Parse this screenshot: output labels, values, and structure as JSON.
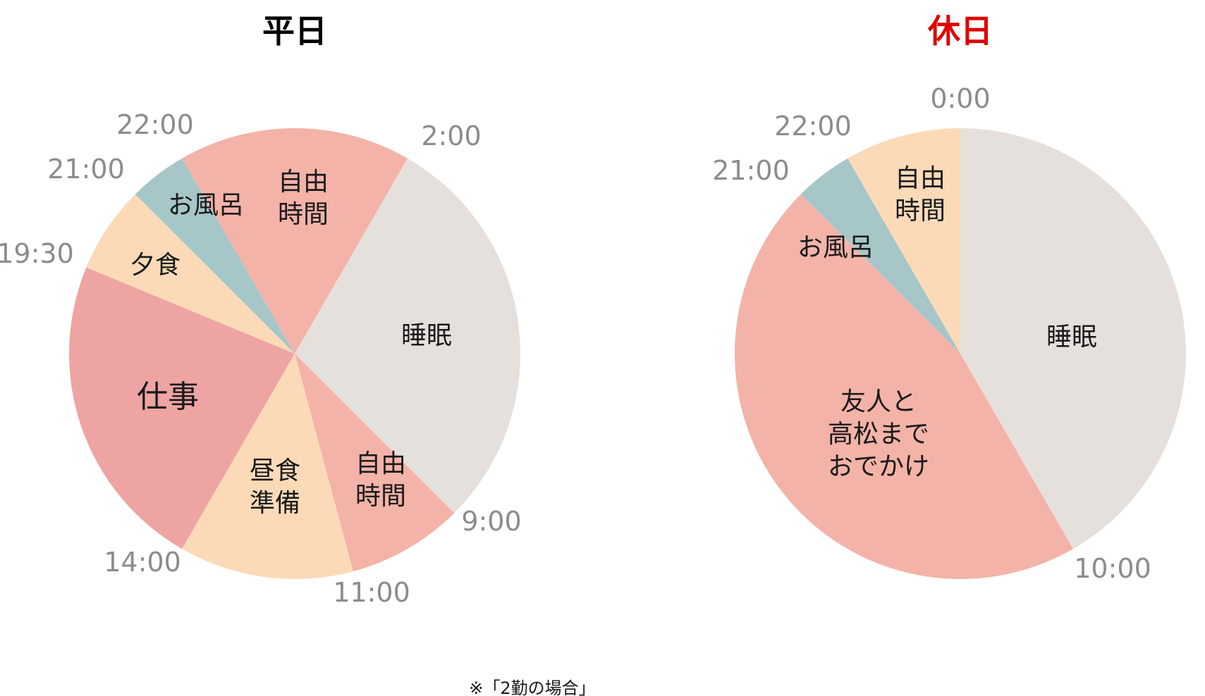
{
  "note": "※「2勤の場合」",
  "chart_data": [
    {
      "type": "pie",
      "title": "平日",
      "title_color": "#000000",
      "segments": [
        {
          "label": "睡眠",
          "start": "2:00",
          "end": "9:00",
          "hours": 7,
          "color": "#e6e0dc"
        },
        {
          "label": "自由\n時間",
          "start": "9:00",
          "end": "11:00",
          "hours": 2,
          "color": "#f4b3a8"
        },
        {
          "label": "昼食\n準備",
          "start": "11:00",
          "end": "14:00",
          "hours": 3,
          "color": "#fcdab8"
        },
        {
          "label": "仕事",
          "start": "14:00",
          "end": "19:30",
          "hours": 5.5,
          "color": "#eea4a3"
        },
        {
          "label": "夕食",
          "start": "19:30",
          "end": "21:00",
          "hours": 1.5,
          "color": "#fcdab8"
        },
        {
          "label": "お風呂",
          "start": "21:00",
          "end": "22:00",
          "hours": 1,
          "color": "#a6c6c8"
        },
        {
          "label": "自由\n時間",
          "start": "22:00",
          "end": "2:00",
          "hours": 4,
          "color": "#f4b3a8"
        }
      ],
      "time_labels": [
        "2:00",
        "9:00",
        "11:00",
        "14:00",
        "19:30",
        "21:00",
        "22:00"
      ]
    },
    {
      "type": "pie",
      "title": "休日",
      "title_color": "#e00000",
      "segments": [
        {
          "label": "睡眠",
          "start": "0:00",
          "end": "10:00",
          "hours": 10,
          "color": "#e6e0dc"
        },
        {
          "label": "友人と\n高松まで\nおでかけ",
          "start": "10:00",
          "end": "21:00",
          "hours": 11,
          "color": "#f4b3a8"
        },
        {
          "label": "お風呂",
          "start": "21:00",
          "end": "22:00",
          "hours": 1,
          "color": "#a6c6c8"
        },
        {
          "label": "自由\n時間",
          "start": "22:00",
          "end": "0:00",
          "hours": 2,
          "color": "#fcdab8"
        }
      ],
      "time_labels": [
        "0:00",
        "10:00",
        "21:00",
        "22:00"
      ]
    }
  ]
}
